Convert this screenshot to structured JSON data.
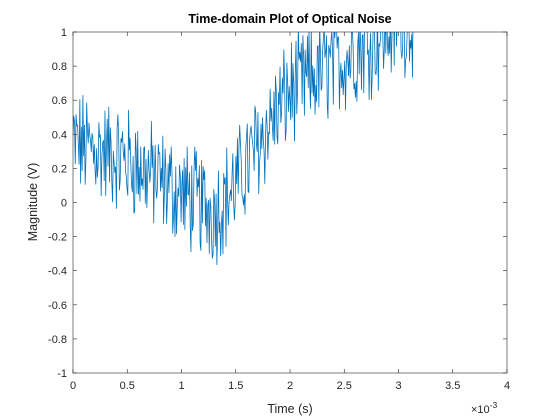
{
  "chart_data": {
    "type": "line",
    "title": "Time-domain Plot of Optical Noise",
    "xlabel": "Time (s)",
    "ylabel": "Magnitude (V)",
    "x_exponent_label_base": "×10",
    "x_exponent": "-3",
    "xlim": [
      0,
      4
    ],
    "ylim": [
      -1,
      1
    ],
    "x_scale": 0.001,
    "xticks": [
      0,
      0.5,
      1,
      1.5,
      2,
      2.5,
      3,
      3.5,
      4
    ],
    "xtick_labels": [
      "0",
      "0.5",
      "1",
      "1.5",
      "2",
      "2.5",
      "3",
      "3.5",
      "4"
    ],
    "yticks": [
      -1,
      -0.8,
      -0.6,
      -0.4,
      -0.2,
      0,
      0.2,
      0.4,
      0.6,
      0.8,
      1
    ],
    "ytick_labels": [
      "-1",
      "-0.8",
      "-0.6",
      "-0.4",
      "-0.2",
      "0",
      "0.2",
      "0.4",
      "0.6",
      "0.8",
      "1"
    ],
    "grid": false,
    "box": true,
    "series": [
      {
        "name": "optical noise",
        "color": "#0072BD",
        "trend_x": [
          0,
          0.5,
          1.0,
          1.3,
          1.5,
          1.8,
          2.0,
          2.5,
          3.0,
          3.2
        ],
        "trend_y": [
          0.35,
          0.25,
          0.05,
          -0.05,
          0.1,
          0.45,
          0.65,
          0.85,
          1.05,
          1.1
        ],
        "noise_amplitude": 0.28,
        "sample_count": 450,
        "x_end": 3.15
      }
    ]
  }
}
